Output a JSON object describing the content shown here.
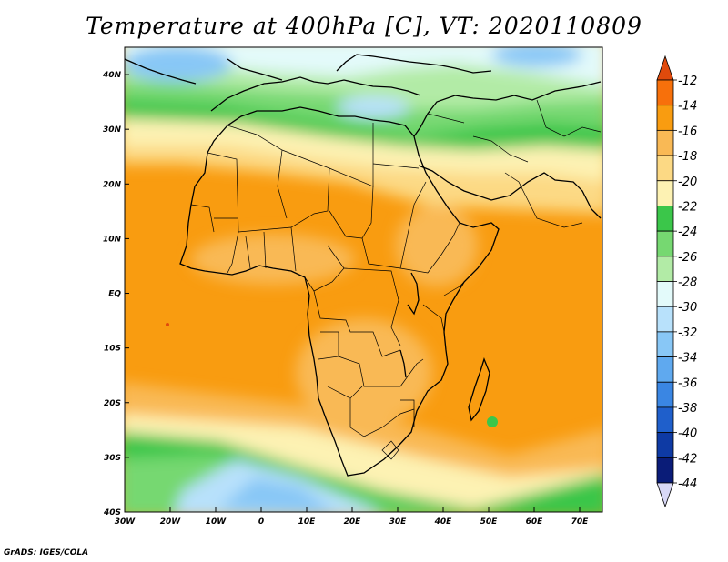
{
  "title": "Temperature at 400hPa [C], VT: 2020110809",
  "credit": "GrADS: IGES/COLA",
  "map": {
    "lon_labels": [
      "30W",
      "20W",
      "10W",
      "0",
      "10E",
      "20E",
      "30E",
      "40E",
      "50E",
      "60E",
      "70E"
    ],
    "lat_labels": [
      "40S",
      "30S",
      "20S",
      "10S",
      "EQ",
      "10N",
      "20N",
      "30N",
      "40N"
    ],
    "lon_range": [
      -30,
      75
    ],
    "lat_range": [
      -40,
      45
    ]
  },
  "colorbar": {
    "labels": [
      "-12",
      "-14",
      "-16",
      "-18",
      "-20",
      "-22",
      "-24",
      "-26",
      "-28",
      "-30",
      "-32",
      "-34",
      "-36",
      "-38",
      "-40",
      "-42",
      "-44"
    ],
    "colors": [
      "#e04a0c",
      "#f7700b",
      "#f99c10",
      "#f9b955",
      "#fcd984",
      "#fdf2b3",
      "#3bc64a",
      "#76d871",
      "#b2eba6",
      "#e3fafa",
      "#b8e1fb",
      "#88c7f6",
      "#5fa9ef",
      "#3a86e3",
      "#1f5fcb",
      "#0e3aa4",
      "#0a1c78"
    ]
  }
}
